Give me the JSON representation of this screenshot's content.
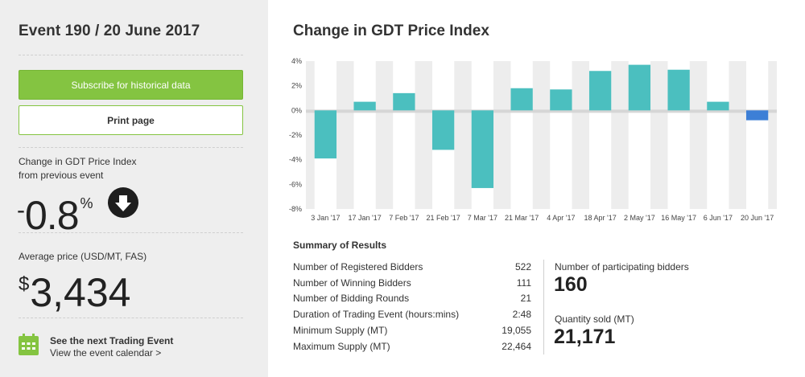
{
  "sidebar": {
    "event_title": "Event 190 / 20 June 2017",
    "subscribe_label": "Subscribe for historical data",
    "print_label": "Print page",
    "change_label_line1": "Change in GDT Price Index",
    "change_label_line2": "from previous event",
    "change_sign": "-",
    "change_value": "0.8",
    "change_unit": "%",
    "change_icon": "down-arrow-icon",
    "avg_label": "Average price (USD/MT, FAS)",
    "avg_currency": "$",
    "avg_value": "3,434",
    "next_event_title": "See the next Trading Event",
    "next_event_link": "View the event calendar >",
    "calendar_icon": "calendar-icon",
    "accent_color": "#84c441"
  },
  "chart_title": "Change in GDT Price Index",
  "chart_data": {
    "type": "bar",
    "title": "Change in GDT Price Index",
    "categories": [
      "3 Jan '17",
      "17 Jan '17",
      "7 Feb '17",
      "21 Feb '17",
      "7 Mar '17",
      "21 Mar '17",
      "4 Apr '17",
      "18 Apr '17",
      "2 May '17",
      "16 May '17",
      "6 Jun '17",
      "20 Jun '17"
    ],
    "values": [
      -3.9,
      0.7,
      1.4,
      -3.2,
      -6.3,
      1.8,
      1.7,
      3.2,
      3.7,
      3.3,
      0.7,
      -0.8
    ],
    "ylim": [
      -8,
      4
    ],
    "yticks": [
      "4%",
      "2%",
      "0%",
      "-2%",
      "-4%",
      "-6%",
      "-8%"
    ],
    "ytick_values": [
      4,
      2,
      0,
      -2,
      -4,
      -6,
      -8
    ],
    "bar_color": "#4bbfbf",
    "highlight_color": "#3d7fd6",
    "highlight_index": 11,
    "band_color": "#ededed"
  },
  "summary": {
    "title": "Summary of Results",
    "rows": [
      {
        "label": "Number of Registered Bidders",
        "value": "522"
      },
      {
        "label": "Number of Winning Bidders",
        "value": "111"
      },
      {
        "label": "Number of Bidding Rounds",
        "value": "21"
      },
      {
        "label": "Duration of Trading Event (hours:mins)",
        "value": "2:48"
      },
      {
        "label": "Minimum Supply (MT)",
        "value": "19,055"
      },
      {
        "label": "Maximum Supply (MT)",
        "value": "22,464"
      }
    ],
    "participating_label": "Number of participating bidders",
    "participating_value": "160",
    "quantity_label": "Quantity sold (MT)",
    "quantity_value": "21,171"
  }
}
